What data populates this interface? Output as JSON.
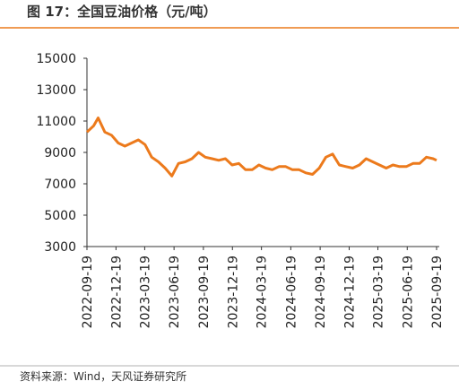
{
  "chart_data": {
    "type": "line",
    "title": "图 17：全国豆油价格（元/吨）",
    "source": "资料来源：Wind，天风证券研究所",
    "x": [
      "2022-09-19",
      "2022-10-10",
      "2022-10-24",
      "2022-11-14",
      "2022-12-05",
      "2022-12-26",
      "2023-01-16",
      "2023-02-06",
      "2023-02-27",
      "2023-03-20",
      "2023-04-10",
      "2023-05-01",
      "2023-05-22",
      "2023-06-12",
      "2023-07-03",
      "2023-07-24",
      "2023-08-14",
      "2023-09-04",
      "2023-09-25",
      "2023-10-16",
      "2023-11-06",
      "2023-11-27",
      "2023-12-18",
      "2024-01-08",
      "2024-01-29",
      "2024-02-19",
      "2024-03-11",
      "2024-04-01",
      "2024-04-22",
      "2024-05-13",
      "2024-06-03",
      "2024-06-24",
      "2024-07-15",
      "2024-08-05",
      "2024-08-26",
      "2024-09-16",
      "2024-10-07",
      "2024-10-28",
      "2024-11-18",
      "2024-12-09",
      "2024-12-30",
      "2025-01-20",
      "2025-02-10",
      "2025-03-03",
      "2025-03-24",
      "2025-04-14",
      "2025-05-05",
      "2025-05-26",
      "2025-06-16",
      "2025-07-07",
      "2025-07-28",
      "2025-08-18",
      "2025-09-08",
      "2025-09-19"
    ],
    "series": [
      {
        "name": "全国豆油价格",
        "color": "#ec7a1c",
        "values": [
          10300,
          10700,
          11200,
          10300,
          10100,
          9600,
          9400,
          9600,
          9800,
          9500,
          8700,
          8400,
          8000,
          7500,
          8300,
          8400,
          8600,
          9000,
          8700,
          8600,
          8500,
          8600,
          8200,
          8300,
          7900,
          7900,
          8200,
          8000,
          7900,
          8100,
          8100,
          7900,
          7900,
          7700,
          7600,
          8000,
          8700,
          8900,
          8200,
          8100,
          8000,
          8200,
          8600,
          8400,
          8200,
          8000,
          8200,
          8100,
          8100,
          8300,
          8300,
          8700,
          8600,
          8500
        ]
      }
    ],
    "ylim": [
      3000,
      15000
    ],
    "yticks": [
      3000,
      5000,
      7000,
      9000,
      11000,
      13000,
      15000
    ],
    "xlim": [
      "2022-09-19",
      "2025-09-19"
    ],
    "xticks": [
      "2022-09-19",
      "2022-12-19",
      "2023-03-19",
      "2023-06-19",
      "2023-09-19",
      "2023-12-19",
      "2024-03-19",
      "2024-06-19",
      "2024-09-19",
      "2024-12-19",
      "2025-03-19",
      "2025-06-19",
      "2025-09-19"
    ]
  }
}
